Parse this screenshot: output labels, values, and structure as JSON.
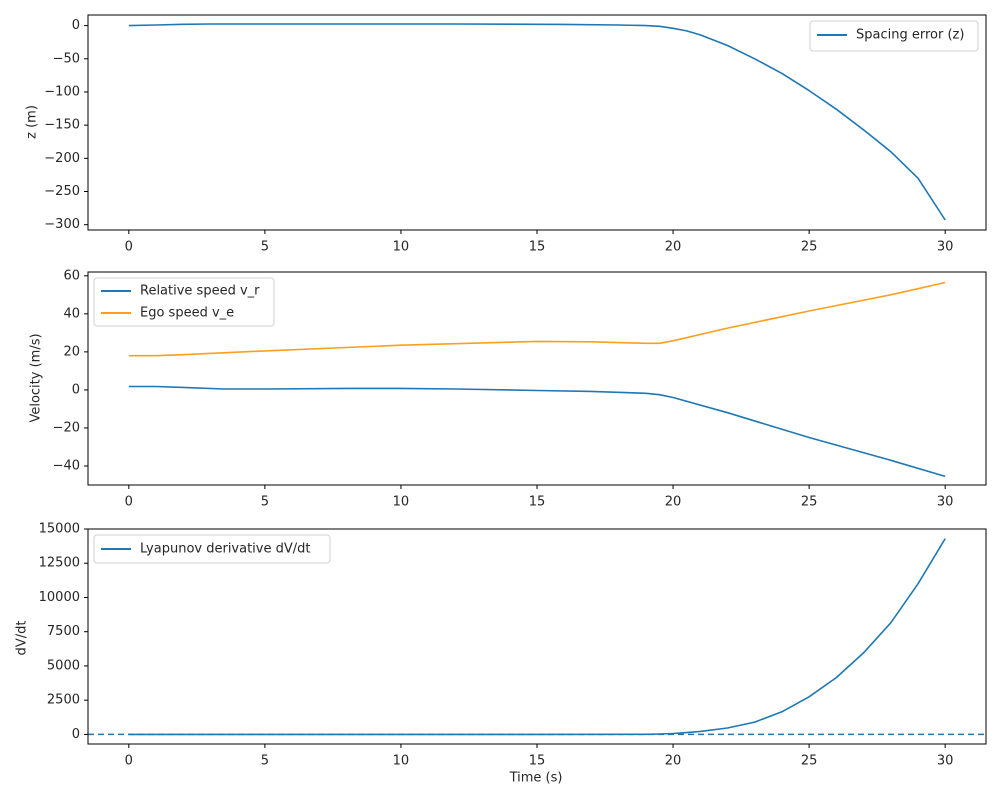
{
  "colors": {
    "blue": "#1f77b4",
    "orange": "#ff9f1c",
    "axis": "#000000",
    "legend_border": "#d0d0d0"
  },
  "chart_data": [
    {
      "type": "line",
      "id": "spacing",
      "ylabel": "z (m)",
      "xlabel": "",
      "xlim": [
        -1.5,
        31.5
      ],
      "ylim": [
        -308,
        16
      ],
      "xticks": [
        0,
        5,
        10,
        15,
        20,
        25,
        30
      ],
      "yticks": [
        0,
        -50,
        -100,
        -150,
        -200,
        -250,
        -300
      ],
      "legend": "upper right",
      "series": [
        {
          "name": "Spacing error (z)",
          "color": "#1f77b4",
          "x": [
            0,
            1,
            2,
            3,
            4,
            5,
            6,
            8,
            10,
            12,
            14,
            16,
            18,
            19,
            19.5,
            20,
            20.5,
            21,
            22,
            23,
            24,
            25,
            26,
            27,
            28,
            29,
            30
          ],
          "y": [
            0,
            1,
            2,
            2.5,
            2.5,
            2.5,
            2.5,
            2.5,
            2.5,
            2.5,
            2.2,
            1.8,
            1,
            0,
            -1,
            -4,
            -8,
            -14,
            -30,
            -50,
            -72,
            -98,
            -126,
            -157,
            -190,
            -230,
            -293
          ]
        }
      ]
    },
    {
      "type": "line",
      "id": "velocity",
      "ylabel": "Velocity (m/s)",
      "xlabel": "",
      "xlim": [
        -1.5,
        31.5
      ],
      "ylim": [
        -50,
        62
      ],
      "xticks": [
        0,
        5,
        10,
        15,
        20,
        25,
        30
      ],
      "yticks": [
        60,
        40,
        20,
        0,
        -20,
        -40
      ],
      "legend": "upper left",
      "series": [
        {
          "name": "Relative speed v_r",
          "color": "#1f77b4",
          "x": [
            0,
            1,
            2,
            3.5,
            5,
            8,
            10,
            12,
            15,
            17,
            19,
            19.5,
            20,
            22,
            25,
            28,
            30
          ],
          "y": [
            1.8,
            1.8,
            1.3,
            0.5,
            0.5,
            0.8,
            0.8,
            0.5,
            -0.3,
            -0.8,
            -1.8,
            -2.5,
            -4,
            -12,
            -25,
            -37,
            -45.5
          ]
        },
        {
          "name": "Ego speed v_e",
          "color": "#ff9f1c",
          "x": [
            0,
            1,
            2,
            5,
            10,
            15,
            17,
            19,
            19.5,
            20,
            22,
            25,
            28,
            30
          ],
          "y": [
            18,
            18,
            18.5,
            20.5,
            23.5,
            25.5,
            25.3,
            24.5,
            24.5,
            25.8,
            32.5,
            41.5,
            50,
            56.5
          ]
        }
      ]
    },
    {
      "type": "line",
      "id": "lyapunov",
      "ylabel": "dV/dt",
      "xlabel": "Time (s)",
      "xlim": [
        -1.5,
        31.5
      ],
      "ylim": [
        -700,
        15000
      ],
      "xticks": [
        0,
        5,
        10,
        15,
        20,
        25,
        30
      ],
      "yticks": [
        15000,
        12500,
        10000,
        7500,
        5000,
        2500,
        0
      ],
      "legend": "upper left",
      "reference_line": {
        "y": 0,
        "style": "dashed",
        "color": "#1f77b4"
      },
      "series": [
        {
          "name": "Lyapunov derivative dV/dt",
          "color": "#1f77b4",
          "x": [
            0,
            5,
            10,
            15,
            19,
            19.5,
            20,
            20.5,
            21,
            22,
            23,
            24,
            25,
            26,
            27,
            28,
            29,
            30
          ],
          "y": [
            0,
            0,
            0,
            0,
            10,
            30,
            70,
            130,
            220,
            470,
            900,
            1650,
            2750,
            4150,
            5950,
            8150,
            11000,
            14300
          ]
        }
      ]
    }
  ]
}
